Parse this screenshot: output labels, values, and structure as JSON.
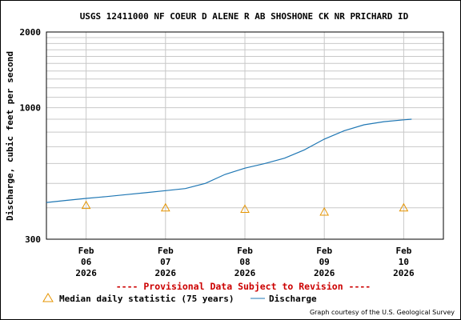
{
  "chart_data": {
    "type": "line",
    "title": "USGS 12411000 NF COEUR D ALENE R AB SHOSHONE CK NR PRICHARD ID",
    "ylabel": "Discharge, cubic feet per second",
    "xlabel": "",
    "y_scale": "log",
    "ylim": [
      300,
      2000
    ],
    "y_labeled_ticks": [
      "300",
      "1000",
      "2000"
    ],
    "x_ticks": [
      {
        "month": "Feb",
        "day": "06",
        "year": "2026"
      },
      {
        "month": "Feb",
        "day": "07",
        "year": "2026"
      },
      {
        "month": "Feb",
        "day": "08",
        "year": "2026"
      },
      {
        "month": "Feb",
        "day": "09",
        "year": "2026"
      },
      {
        "month": "Feb",
        "day": "10",
        "year": "2026"
      }
    ],
    "x_units": "days since Feb 06 2026 00:00",
    "xlim": [
      -0.5,
      4.5
    ],
    "series": [
      {
        "name": "Discharge",
        "kind": "line",
        "color": "#1f77b4",
        "x": [
          -0.5,
          -0.25,
          0,
          0.25,
          0.5,
          0.75,
          1.0,
          1.25,
          1.5,
          1.75,
          2.0,
          2.25,
          2.5,
          2.75,
          3.0,
          3.25,
          3.5,
          3.75,
          4.0,
          4.1
        ],
        "y": [
          420,
          428,
          436,
          443,
          451,
          459,
          468,
          477,
          500,
          543,
          575,
          600,
          630,
          680,
          750,
          810,
          855,
          880,
          895,
          900
        ]
      },
      {
        "name": "Median daily statistic (75 years)",
        "kind": "marker",
        "marker": "triangle",
        "color": "#e59400",
        "x": [
          0,
          1,
          2,
          3,
          4
        ],
        "y": [
          409,
          400,
          395,
          385,
          400
        ]
      }
    ],
    "grid": true,
    "legend_placement": "bottom"
  },
  "notice": "---- Provisional Data Subject to Revision ----",
  "legend": {
    "median_label": "Median daily statistic (75 years)",
    "discharge_label": "Discharge"
  },
  "credit": "Graph courtesy of the U.S. Geological Survey",
  "colors": {
    "notice": "#cc0000",
    "grid": "#c8c8c8",
    "discharge": "#1f77b4",
    "median": "#e59400"
  }
}
